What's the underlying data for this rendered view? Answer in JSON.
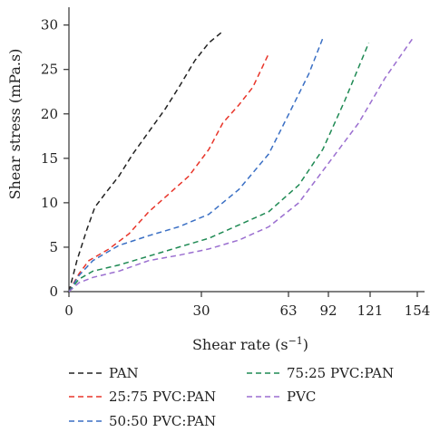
{
  "chart_data": {
    "type": "line",
    "xlabel_main": "Shear rate (s",
    "xlabel_exp": "−1",
    "xlabel_close": ")",
    "ylabel": "Shear stress (mPa.s)",
    "xtick_labels": [
      "0",
      "30",
      "63",
      "92",
      "121",
      "154"
    ],
    "ytick_labels": [
      "0",
      "5",
      "10",
      "15",
      "20",
      "25",
      "30"
    ],
    "ylim": [
      0,
      32
    ],
    "grid": false,
    "legend_position": "bottom",
    "series": [
      {
        "name": "PAN",
        "color": "#222222",
        "points": [
          [
            0,
            0
          ],
          [
            4,
            3.5
          ],
          [
            9,
            7
          ],
          [
            13,
            9.5
          ],
          [
            18,
            11
          ],
          [
            25,
            13
          ],
          [
            32,
            15.5
          ],
          [
            40,
            18
          ],
          [
            48,
            20.5
          ],
          [
            55,
            23
          ],
          [
            63,
            26
          ],
          [
            70,
            28
          ],
          [
            77,
            29.3
          ]
        ]
      },
      {
        "name": "25:75 PVC:PAN",
        "color": "#e8352a",
        "points": [
          [
            0,
            0
          ],
          [
            5,
            2
          ],
          [
            10,
            3.5
          ],
          [
            20,
            4.8
          ],
          [
            30,
            6.5
          ],
          [
            40,
            9
          ],
          [
            50,
            11
          ],
          [
            60,
            13
          ],
          [
            70,
            16
          ],
          [
            77,
            19
          ],
          [
            85,
            21
          ],
          [
            92,
            23
          ],
          [
            100,
            26.8
          ]
        ]
      },
      {
        "name": "50:50 PVC:PAN",
        "color": "#3a6fc4",
        "points": [
          [
            0,
            0
          ],
          [
            5,
            1.8
          ],
          [
            12,
            3.5
          ],
          [
            25,
            5.2
          ],
          [
            40,
            6.3
          ],
          [
            55,
            7.3
          ],
          [
            70,
            8.7
          ],
          [
            85,
            11.5
          ],
          [
            100,
            15.5
          ],
          [
            110,
            20
          ],
          [
            120,
            24.5
          ],
          [
            127,
            28.5
          ]
        ]
      },
      {
        "name": "75:25 PVC:PAN",
        "color": "#1f8a54",
        "points": [
          [
            0,
            0
          ],
          [
            5,
            1.4
          ],
          [
            12,
            2.3
          ],
          [
            25,
            3
          ],
          [
            40,
            4
          ],
          [
            55,
            5
          ],
          [
            70,
            6
          ],
          [
            85,
            7.5
          ],
          [
            100,
            9
          ],
          [
            115,
            12
          ],
          [
            127,
            16
          ],
          [
            138,
            21.5
          ],
          [
            150,
            28
          ]
        ]
      },
      {
        "name": "PVC",
        "color": "#9b6fd0",
        "points": [
          [
            0,
            0
          ],
          [
            5,
            1
          ],
          [
            12,
            1.6
          ],
          [
            25,
            2.3
          ],
          [
            40,
            3.5
          ],
          [
            55,
            4.1
          ],
          [
            70,
            4.8
          ],
          [
            85,
            5.8
          ],
          [
            100,
            7.3
          ],
          [
            115,
            10
          ],
          [
            130,
            14.5
          ],
          [
            145,
            19
          ],
          [
            158,
            24
          ],
          [
            172,
            28.5
          ]
        ]
      }
    ]
  }
}
